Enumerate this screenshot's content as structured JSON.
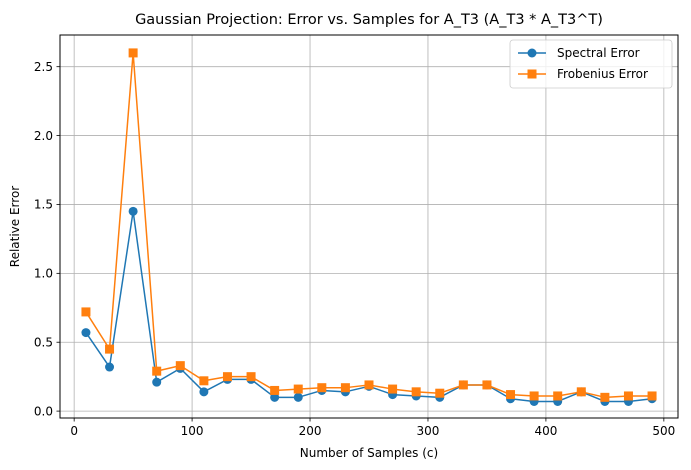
{
  "chart_data": {
    "type": "line",
    "title": "Gaussian Projection: Error vs. Samples for A_T3 (A_T3 * A_T3^T)",
    "xlabel": "Number of Samples (c)",
    "ylabel": "Relative Error",
    "xlim": [
      -12,
      512
    ],
    "ylim": [
      -0.05,
      2.73
    ],
    "xticks": [
      0,
      100,
      200,
      300,
      400,
      500
    ],
    "yticks": [
      0.0,
      0.5,
      1.0,
      1.5,
      2.0,
      2.5
    ],
    "xtick_labels": [
      "0",
      "100",
      "200",
      "300",
      "400",
      "500"
    ],
    "ytick_labels": [
      "0.0",
      "0.5",
      "1.0",
      "1.5",
      "2.0",
      "2.5"
    ],
    "grid": true,
    "legend_position": "top-right",
    "x": [
      10,
      30,
      50,
      70,
      90,
      110,
      130,
      150,
      170,
      190,
      210,
      230,
      250,
      270,
      290,
      310,
      330,
      350,
      370,
      390,
      410,
      430,
      450,
      470,
      490
    ],
    "series": [
      {
        "name": "Spectral Error",
        "color": "#1f77b4",
        "marker": "circle",
        "values": [
          0.57,
          0.32,
          1.45,
          0.21,
          0.31,
          0.14,
          0.23,
          0.23,
          0.1,
          0.1,
          0.15,
          0.14,
          0.18,
          0.12,
          0.11,
          0.1,
          0.19,
          0.19,
          0.09,
          0.07,
          0.07,
          0.14,
          0.07,
          0.07,
          0.09
        ]
      },
      {
        "name": "Frobenius Error",
        "color": "#ff7f0e",
        "marker": "square",
        "values": [
          0.72,
          0.45,
          2.6,
          0.29,
          0.33,
          0.22,
          0.25,
          0.25,
          0.15,
          0.16,
          0.17,
          0.17,
          0.19,
          0.16,
          0.14,
          0.13,
          0.19,
          0.19,
          0.12,
          0.11,
          0.11,
          0.14,
          0.1,
          0.11,
          0.11
        ]
      }
    ]
  }
}
